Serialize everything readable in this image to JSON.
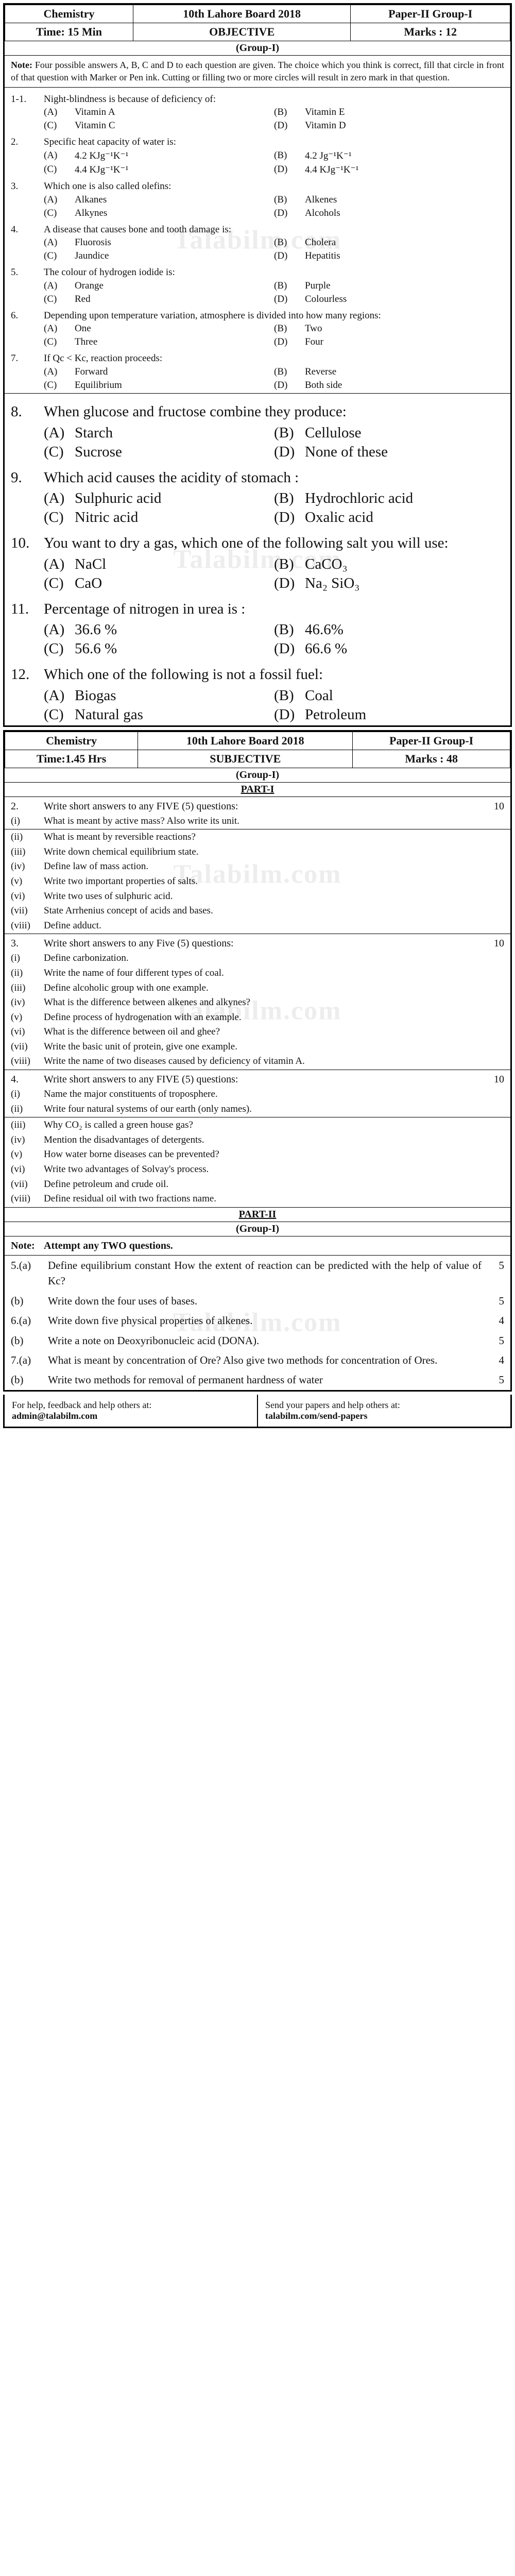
{
  "watermark": "Talabilm.com",
  "obj_header": {
    "r1": [
      "Chemistry",
      "10th Lahore Board 2018",
      "Paper-II Group-I"
    ],
    "r2": [
      "Time: 15 Min",
      "OBJECTIVE",
      "Marks : 12"
    ]
  },
  "group_label": "(Group-I)",
  "note_label": "Note:",
  "obj_note": "Four possible answers A, B, C and D to each question are given. The choice which you think is correct, fill that circle in front of that question with Marker or Pen ink. Cutting or filling two or more circles will result in zero mark in that question.",
  "obj_questions_small": [
    {
      "n": "1-1.",
      "t": "Night-blindness is because of deficiency of:",
      "o": [
        "Vitamin A",
        "Vitamin E",
        "Vitamin C",
        "Vitamin D"
      ]
    },
    {
      "n": "2.",
      "t": "Specific heat capacity of water is:",
      "o": [
        "4.2 KJg⁻¹K⁻¹",
        "4.2 Jg⁻¹K⁻¹",
        "4.4 KJg⁻¹K⁻¹",
        "4.4 KJg⁻¹K⁻¹"
      ]
    },
    {
      "n": "3.",
      "t": "Which one is also called olefins:",
      "o": [
        "Alkanes",
        "Alkenes",
        "Alkynes",
        "Alcohols"
      ]
    },
    {
      "n": "4.",
      "t": "A disease that causes bone and tooth damage is:",
      "o": [
        "Fluorosis",
        "Cholera",
        "Jaundice",
        "Hepatitis"
      ]
    },
    {
      "n": "5.",
      "t": "The colour of hydrogen iodide is:",
      "o": [
        "Orange",
        "Purple",
        "Red",
        "Colourless"
      ]
    },
    {
      "n": "6.",
      "t": "Depending upon temperature variation, atmosphere is divided into how many regions:",
      "o": [
        "One",
        "Two",
        "Three",
        "Four"
      ]
    },
    {
      "n": "7.",
      "t": "If Qc < Kc, reaction proceeds:",
      "o": [
        "Forward",
        "Reverse",
        "Equilibrium",
        "Both side"
      ]
    }
  ],
  "obj_questions_big": [
    {
      "n": "8.",
      "t": "When glucose and fructose combine they produce:",
      "o": [
        "Starch",
        "Cellulose",
        "Sucrose",
        "None of these"
      ]
    },
    {
      "n": "9.",
      "t": "Which acid causes the acidity of stomach :",
      "o": [
        "Sulphuric acid",
        "Hydrochloric acid",
        "Nitric acid",
        "Oxalic acid"
      ]
    },
    {
      "n": "10.",
      "t": "You want to dry a gas, which one of the following salt you will use:",
      "o": [
        "NaCl",
        "CaCO₃",
        "CaO",
        "Na₂ SiO₃"
      ]
    },
    {
      "n": "11.",
      "t": "Percentage of nitrogen in urea is :",
      "o": [
        "36.6 %",
        "46.6%",
        "56.6 %",
        "66.6 %"
      ]
    },
    {
      "n": "12.",
      "t": "Which one of the following is not a fossil fuel:",
      "o": [
        "Biogas",
        "Coal",
        "Natural gas",
        "Petroleum"
      ]
    }
  ],
  "subj_header": {
    "r1": [
      "Chemistry",
      "10th Lahore Board 2018",
      "Paper-II Group-I"
    ],
    "r2": [
      "Time:1.45 Hrs",
      "SUBJECTIVE",
      "Marks : 48"
    ]
  },
  "part1_label": "PART-I",
  "part2_label": "PART-II",
  "q2": {
    "n": "2.",
    "t": "Write short answers to any FIVE (5) questions:",
    "tail": "10"
  },
  "q2_items": [
    {
      "r": "(i)",
      "t": "What is meant by active mass? Also write its unit.",
      "u": true
    },
    {
      "r": "(ii)",
      "t": "What is meant by reversible reactions?"
    },
    {
      "r": "(iii)",
      "t": "Write down chemical equilibrium state."
    },
    {
      "r": "(iv)",
      "t": "Define law of mass action."
    },
    {
      "r": "(v)",
      "t": "Write two important properties of salts."
    },
    {
      "r": "(vi)",
      "t": "Write two uses of sulphuric acid."
    },
    {
      "r": "(vii)",
      "t": "State Arrhenius concept of acids and bases."
    },
    {
      "r": "(viii)",
      "t": "Define adduct.",
      "u": true
    }
  ],
  "q3": {
    "n": "3.",
    "t": "Write short answers to any Five (5) questions:",
    "tail": "10"
  },
  "q3_items": [
    {
      "r": "(i)",
      "t": "Define carbonization."
    },
    {
      "r": "(ii)",
      "t": "Write the name of four different types of coal."
    },
    {
      "r": "(iii)",
      "t": "Define alcoholic group with one example."
    },
    {
      "r": "(iv)",
      "t": "What is the difference between alkenes and alkynes?"
    },
    {
      "r": "(v)",
      "t": "Define process of hydrogenation with an example."
    },
    {
      "r": "(vi)",
      "t": "What is the difference between oil and ghee?"
    },
    {
      "r": "(vii)",
      "t": "Write the basic unit of protein, give one example."
    },
    {
      "r": "(viii)",
      "t": "Write the name of two diseases caused by deficiency of vitamin A.",
      "u": true
    }
  ],
  "q4": {
    "n": "4.",
    "t": "Write short answers to any FIVE (5) questions:",
    "tail": "10"
  },
  "q4_items": [
    {
      "r": "(i)",
      "t": "Name the major constituents of troposphere."
    },
    {
      "r": "(ii)",
      "t": "Write four natural systems of our earth (only names).",
      "u": true
    },
    {
      "r": "(iii)",
      "t": "Why CO₂ is called a green house gas?"
    },
    {
      "r": "(iv)",
      "t": "Mention the disadvantages of detergents."
    },
    {
      "r": "(v)",
      "t": "How water borne diseases can be prevented?"
    },
    {
      "r": "(vi)",
      "t": "Write two advantages of Solvay's process."
    },
    {
      "r": "(vii)",
      "t": "Define petroleum and crude oil."
    },
    {
      "r": "(viii)",
      "t": "Define residual oil with two fractions name.",
      "u": true
    }
  ],
  "part2_note_label": "Note:",
  "part2_note": "Attempt any TWO questions.",
  "q5": [
    {
      "n": "5.(a)",
      "t": "Define equilibrium constant How the extent of reaction can be predicted with the help of value of Kc?",
      "tail": "5"
    },
    {
      "n": "(b)",
      "t": "Write down the four uses of bases.",
      "tail": "5"
    },
    {
      "n": "6.(a)",
      "t": "Write down five physical properties of alkenes.",
      "tail": "4"
    },
    {
      "n": "(b)",
      "t": "Write a note on Deoxyribonucleic acid (DONA).",
      "tail": "5"
    },
    {
      "n": "7.(a)",
      "t": "What is meant by concentration of Ore? Also give two methods for concentration of Ores.",
      "tail": "4"
    },
    {
      "n": "(b)",
      "t": "Write two methods for removal of permanent hardness of water",
      "tail": "5"
    }
  ],
  "footer": {
    "left_l1": "For help, feedback and help others at:",
    "left_email": "admin@talabilm.com",
    "right_l1": "Send your papers and help others at:",
    "right_url": "talabilm.com/send-papers"
  },
  "opt_letters": [
    "(A)",
    "(B)",
    "(C)",
    "(D)"
  ]
}
